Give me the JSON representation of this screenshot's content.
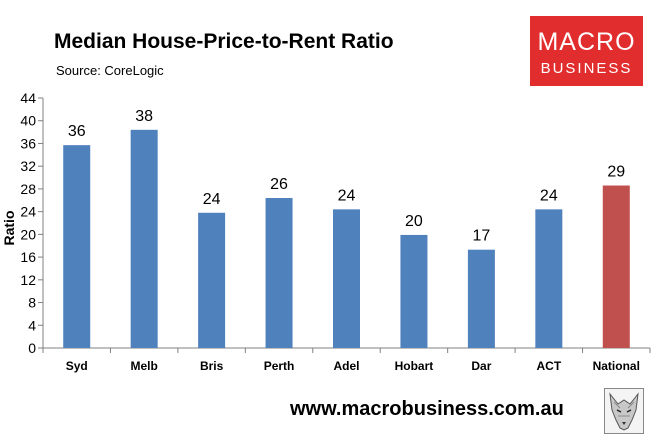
{
  "header": {
    "title": "Median House-Price-to-Rent Ratio",
    "source": "Source: CoreLogic"
  },
  "logo": {
    "line1": "MACRO",
    "line2": "BUSINESS",
    "background": "#e12d2d"
  },
  "footer": {
    "url": "www.macrobusiness.com.au",
    "mascot_icon": "wolf-icon"
  },
  "chart_data": {
    "type": "bar",
    "title": "Median House-Price-to-Rent Ratio",
    "subtitle": "Source: CoreLogic",
    "xlabel": "",
    "ylabel": "Ratio",
    "categories": [
      "Syd",
      "Melb",
      "Bris",
      "Perth",
      "Adel",
      "Hobart",
      "Dar",
      "ACT",
      "National"
    ],
    "values": [
      35.7,
      38.4,
      23.8,
      26.4,
      24.4,
      19.9,
      17.3,
      24.4,
      28.6
    ],
    "data_labels": [
      "36",
      "38",
      "24",
      "26",
      "24",
      "20",
      "17",
      "24",
      "29"
    ],
    "ylim": [
      0,
      44
    ],
    "yticks": [
      0,
      4,
      8,
      12,
      16,
      20,
      24,
      28,
      32,
      36,
      40,
      44
    ],
    "grid": false,
    "legend": "none",
    "colors": {
      "bar": "#4f81bd",
      "highlight": "#c0504d"
    },
    "highlight_category": "National"
  }
}
